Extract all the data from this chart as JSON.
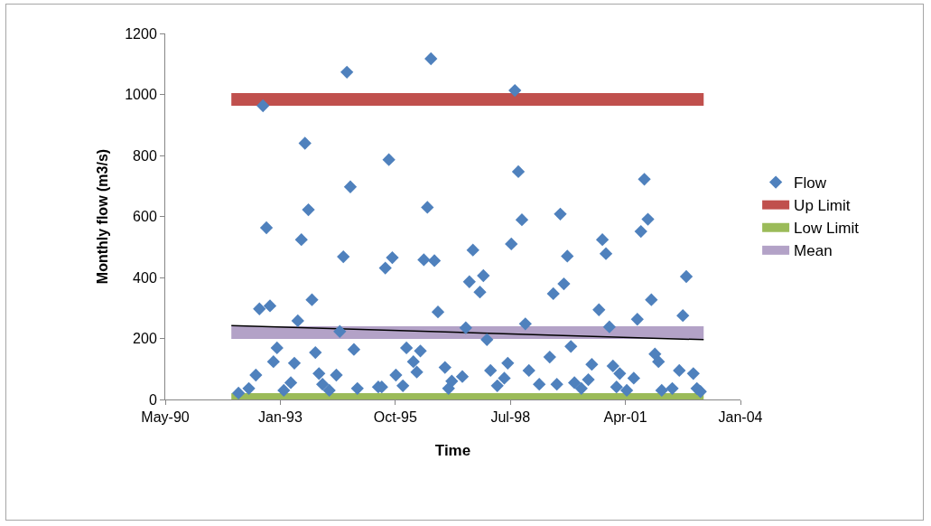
{
  "chart_data": {
    "type": "scatter",
    "xlabel": "Time",
    "ylabel": "Monthly flow (m3/s)",
    "xlim": [
      "1990-05-05",
      "2004-01-15"
    ],
    "xticks": [
      {
        "value": "1990-05-05",
        "label": "May-90"
      },
      {
        "value": "1993-01-30",
        "label": "Jan-93"
      },
      {
        "value": "1995-10-27",
        "label": "Oct-95"
      },
      {
        "value": "1998-07-24",
        "label": "Jul-98"
      },
      {
        "value": "2001-04-19",
        "label": "Apr-01"
      },
      {
        "value": "2004-01-15",
        "label": "Jan-04"
      }
    ],
    "ylim": [
      0,
      1200
    ],
    "yticks": [
      0,
      200,
      400,
      600,
      800,
      1000,
      1200
    ],
    "grid": false,
    "legend": "right",
    "series": [
      {
        "name": "Flow",
        "color": "#4f81bd",
        "marker": "diamond",
        "x": [
          "1992-02",
          "1992-05",
          "1992-07",
          "1992-08",
          "1992-09",
          "1992-10",
          "1992-11",
          "1992-12",
          "1993-01",
          "1993-03",
          "1993-05",
          "1993-06",
          "1993-07",
          "1993-08",
          "1993-09",
          "1993-10",
          "1993-11",
          "1993-12",
          "1994-01",
          "1994-02",
          "1994-04",
          "1994-06",
          "1994-07",
          "1994-08",
          "1994-09",
          "1994-10",
          "1994-11",
          "1994-12",
          "1995-06",
          "1995-07",
          "1995-08",
          "1995-09",
          "1995-10",
          "1995-11",
          "1996-01",
          "1996-02",
          "1996-04",
          "1996-05",
          "1996-06",
          "1996-07",
          "1996-08",
          "1996-09",
          "1996-10",
          "1996-11",
          "1997-01",
          "1997-02",
          "1997-03",
          "1997-06",
          "1997-07",
          "1997-08",
          "1997-09",
          "1997-11",
          "1997-12",
          "1998-01",
          "1998-02",
          "1998-04",
          "1998-06",
          "1998-07",
          "1998-08",
          "1998-09",
          "1998-10",
          "1998-11",
          "1998-12",
          "1999-01",
          "1999-04",
          "1999-07",
          "1999-08",
          "1999-09",
          "1999-10",
          "1999-11",
          "1999-12",
          "2000-01",
          "2000-02",
          "2000-04",
          "2000-06",
          "2000-07",
          "2000-09",
          "2000-10",
          "2000-11",
          "2000-12",
          "2001-01",
          "2001-02",
          "2001-03",
          "2001-05",
          "2001-07",
          "2001-08",
          "2001-09",
          "2001-10",
          "2001-11",
          "2001-12",
          "2002-01",
          "2002-02",
          "2002-03",
          "2002-06",
          "2002-08",
          "2002-09",
          "2002-10",
          "2002-12",
          "2003-01",
          "2003-02"
        ],
        "values": [
          21,
          36,
          80,
          297,
          963,
          563,
          307,
          124,
          169,
          30,
          55,
          119,
          258,
          524,
          840,
          622,
          327,
          154,
          85,
          50,
          30,
          80,
          223,
          468,
          1073,
          697,
          164,
          36,
          41,
          41,
          431,
          786,
          465,
          80,
          45,
          169,
          124,
          90,
          159,
          458,
          630,
          1117,
          455,
          287,
          105,
          36,
          60,
          75,
          235,
          386,
          490,
          352,
          406,
          196,
          95,
          45,
          70,
          119,
          510,
          1013,
          747,
          589,
          248,
          95,
          50,
          139,
          347,
          50,
          608,
          379,
          470,
          174,
          55,
          36,
          65,
          115,
          294,
          524,
          478,
          238,
          110,
          41,
          85,
          30,
          70,
          263,
          551,
          722,
          591,
          327,
          149,
          124,
          30,
          36,
          95,
          275,
          403,
          85,
          36,
          26
        ]
      },
      {
        "name": "Up Limit",
        "type": "line",
        "marker": "none",
        "color": "#c0504d",
        "x": [
          "1991-12",
          "2003-03"
        ],
        "values": [
          984,
          984
        ]
      },
      {
        "name": "Low Limit",
        "type": "line",
        "marker": "none",
        "color": "#9bbb59",
        "x": [
          "1991-12",
          "2003-03"
        ],
        "values": [
          0,
          0
        ]
      },
      {
        "name": "Mean",
        "type": "line",
        "marker": "none",
        "color": "#b3a2c7",
        "x": [
          "1991-12",
          "2003-03"
        ],
        "values": [
          219,
          219
        ]
      },
      {
        "type": "line",
        "marker": "none",
        "color": "#000000",
        "x": [
          "1991-12",
          "2003-03"
        ],
        "values": [
          242,
          196
        ]
      }
    ]
  }
}
